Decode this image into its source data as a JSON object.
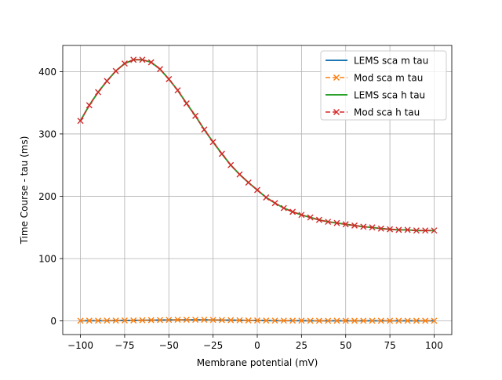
{
  "chart_data": {
    "type": "line",
    "xlabel": "Membrane potential (mV)",
    "ylabel": "Time Course - tau (ms)",
    "xlim": [
      -110,
      110
    ],
    "ylim": [
      -22,
      442
    ],
    "xticks": [
      -100,
      -75,
      -50,
      -25,
      0,
      25,
      50,
      75,
      100
    ],
    "yticks": [
      0,
      100,
      200,
      300,
      400
    ],
    "grid": true,
    "legend_position": "top-right",
    "x": [
      -100,
      -95,
      -90,
      -85,
      -80,
      -75,
      -70,
      -65,
      -60,
      -55,
      -50,
      -45,
      -40,
      -35,
      -30,
      -25,
      -20,
      -15,
      -10,
      -5,
      0,
      5,
      10,
      15,
      20,
      25,
      30,
      35,
      40,
      45,
      50,
      55,
      60,
      65,
      70,
      75,
      80,
      85,
      90,
      95,
      100
    ],
    "series": [
      {
        "name": "LEMS sca m tau",
        "color": "#1f77b4",
        "style": "solid",
        "marker": "none",
        "values": [
          0.2,
          0.3,
          0.3,
          0.4,
          0.5,
          0.6,
          0.7,
          0.9,
          1.1,
          1.3,
          1.5,
          1.7,
          1.8,
          1.8,
          1.7,
          1.5,
          1.3,
          1.1,
          0.9,
          0.7,
          0.6,
          0.5,
          0.4,
          0.4,
          0.3,
          0.3,
          0.2,
          0.2,
          0.2,
          0.2,
          0.1,
          0.1,
          0.1,
          0.1,
          0.1,
          0.1,
          0.1,
          0.1,
          0.1,
          0.1,
          0.1
        ]
      },
      {
        "name": "Mod sca m tau",
        "color": "#ff7f0e",
        "style": "dashed",
        "marker": "x",
        "values": [
          0.2,
          0.3,
          0.3,
          0.4,
          0.5,
          0.6,
          0.7,
          0.9,
          1.1,
          1.3,
          1.5,
          1.7,
          1.8,
          1.8,
          1.7,
          1.5,
          1.3,
          1.1,
          0.9,
          0.7,
          0.6,
          0.5,
          0.4,
          0.4,
          0.3,
          0.3,
          0.2,
          0.2,
          0.2,
          0.2,
          0.1,
          0.1,
          0.1,
          0.1,
          0.1,
          0.1,
          0.1,
          0.1,
          0.1,
          0.1,
          0.1
        ]
      },
      {
        "name": "LEMS sca h tau",
        "color": "#2ca02c",
        "style": "solid",
        "marker": "none",
        "values": [
          321,
          346,
          367,
          385,
          401,
          413,
          419,
          419,
          415,
          404,
          388,
          370,
          349,
          329,
          307,
          287,
          268,
          250,
          235,
          222,
          210,
          198,
          189,
          181,
          175,
          170,
          166,
          162,
          159,
          157,
          155,
          153,
          151,
          150,
          148,
          147,
          146,
          146,
          145,
          145,
          145
        ]
      },
      {
        "name": "Mod sca h tau",
        "color": "#d62728",
        "style": "dashed",
        "marker": "x",
        "values": [
          321,
          346,
          367,
          385,
          401,
          413,
          419,
          419,
          415,
          404,
          388,
          370,
          349,
          329,
          307,
          287,
          268,
          250,
          235,
          222,
          210,
          198,
          189,
          181,
          175,
          170,
          166,
          162,
          159,
          157,
          155,
          153,
          151,
          150,
          148,
          147,
          146,
          146,
          145,
          145,
          145
        ]
      }
    ]
  }
}
